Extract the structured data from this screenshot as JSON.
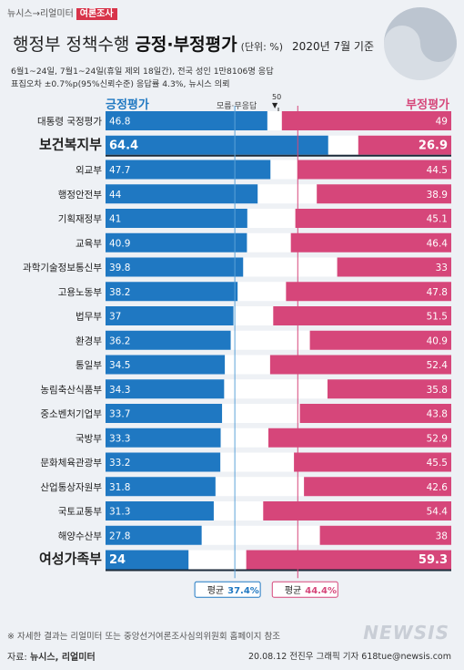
{
  "brand": {
    "prefix": "뉴시스→리얼미터",
    "tag": "여론조사"
  },
  "header": {
    "title_normal": "행정부 정책수행",
    "title_bold": "긍정·부정평가",
    "unit": "(단위: %)",
    "date": "2020년 7월 기준",
    "desc_line1": "6월1~24일, 7월1~24일(휴일 제외 18일간), 전국 성인 1만8106명 응답",
    "desc_line2": "표집오차 ±0.7%p(95%신뢰수준) 응답률 4.3%, 뉴시스 의뢰"
  },
  "colors": {
    "positive": "#1f78c2",
    "negative": "#d6467a",
    "avg_positive_line": "#5ba2d8",
    "avg_negative_line": "#d6467a"
  },
  "chart_data": {
    "type": "bar",
    "legend": {
      "positive": "긍정평가",
      "negative": "부정평가",
      "middle": "모름·무응답"
    },
    "fifty_label": "50",
    "categories": [
      "대통령 국정평가",
      "보건복지부",
      "외교부",
      "행정안전부",
      "기획재정부",
      "교육부",
      "과학기술정보통신부",
      "고용노동부",
      "법무부",
      "환경부",
      "통일부",
      "농림축산식품부",
      "중소벤처기업부",
      "국방부",
      "문화체육관광부",
      "산업통상자원부",
      "국토교통부",
      "해양수산부",
      "여성가족부"
    ],
    "highlight": [
      false,
      true,
      false,
      false,
      false,
      false,
      false,
      false,
      false,
      false,
      false,
      false,
      false,
      false,
      false,
      false,
      false,
      false,
      true
    ],
    "series": [
      {
        "name": "긍정평가",
        "values": [
          46.8,
          64.4,
          47.7,
          44,
          41,
          40.9,
          39.8,
          38.2,
          37,
          36.2,
          34.5,
          34.3,
          33.7,
          33.3,
          33.2,
          31.8,
          31.3,
          27.8,
          24
        ]
      },
      {
        "name": "부정평가",
        "values": [
          49,
          26.9,
          44.5,
          38.9,
          45.1,
          46.4,
          33,
          47.8,
          51.5,
          40.9,
          52.4,
          35.8,
          43.8,
          52.9,
          45.5,
          42.6,
          54.4,
          38,
          59.3
        ]
      }
    ],
    "averages": {
      "positive_label": "평균",
      "positive_value": "37.4%",
      "positive": 37.4,
      "negative_label": "평균",
      "negative_value": "44.4%",
      "negative": 44.4
    },
    "xlim": [
      0,
      100
    ]
  },
  "footer": {
    "note": "※ 자세한 결과는 리얼미터 또는 중앙선거여론조사심의위원회 홈페이지 참조",
    "source_label": "자료:",
    "source": "뉴시스, 리얼미터",
    "credit": "20.08.12 전진우 그래픽 기자 618tue@newsis.com",
    "logo": "NEWSIS"
  }
}
